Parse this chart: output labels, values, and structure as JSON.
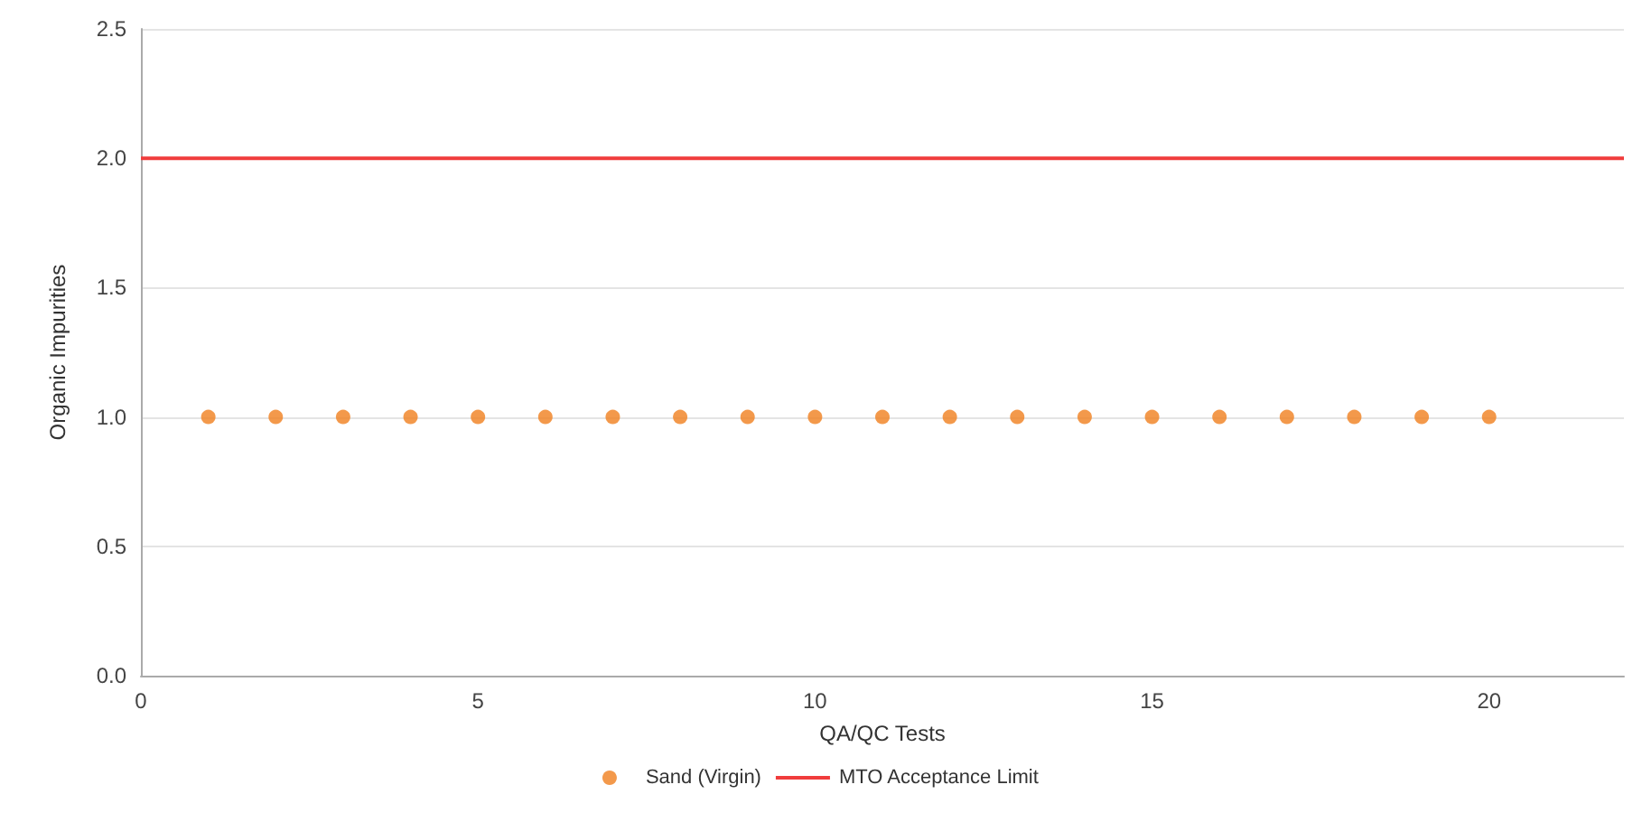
{
  "chart_data": {
    "type": "scatter",
    "xlabel": "QA/QC Tests",
    "ylabel": "Organic Impurities",
    "x": [
      1,
      2,
      3,
      4,
      5,
      6,
      7,
      8,
      9,
      10,
      11,
      12,
      13,
      14,
      15,
      16,
      17,
      18,
      19,
      20
    ],
    "series": [
      {
        "name": "Sand (Virgin)",
        "color": "#f07f1e",
        "marker": "circle",
        "values": [
          1,
          1,
          1,
          1,
          1,
          1,
          1,
          1,
          1,
          1,
          1,
          1,
          1,
          1,
          1,
          1,
          1,
          1,
          1,
          1
        ]
      },
      {
        "name": "MTO Acceptance Limit",
        "type": "line",
        "color": "#f03c3c",
        "marker": "none",
        "x": [
          0,
          22
        ],
        "values": [
          2,
          2
        ]
      }
    ],
    "xlim": [
      0,
      22
    ],
    "xticks": [
      0,
      5,
      10,
      15,
      20
    ],
    "ylim": [
      0,
      2.5
    ],
    "yticks": [
      {
        "value": 0,
        "label": "0.0"
      },
      0.5,
      {
        "value": 1,
        "label": "1.0"
      },
      1.5,
      {
        "value": 2,
        "label": "2.0"
      },
      2.5
    ],
    "grid": "y",
    "legend": "bottom"
  }
}
